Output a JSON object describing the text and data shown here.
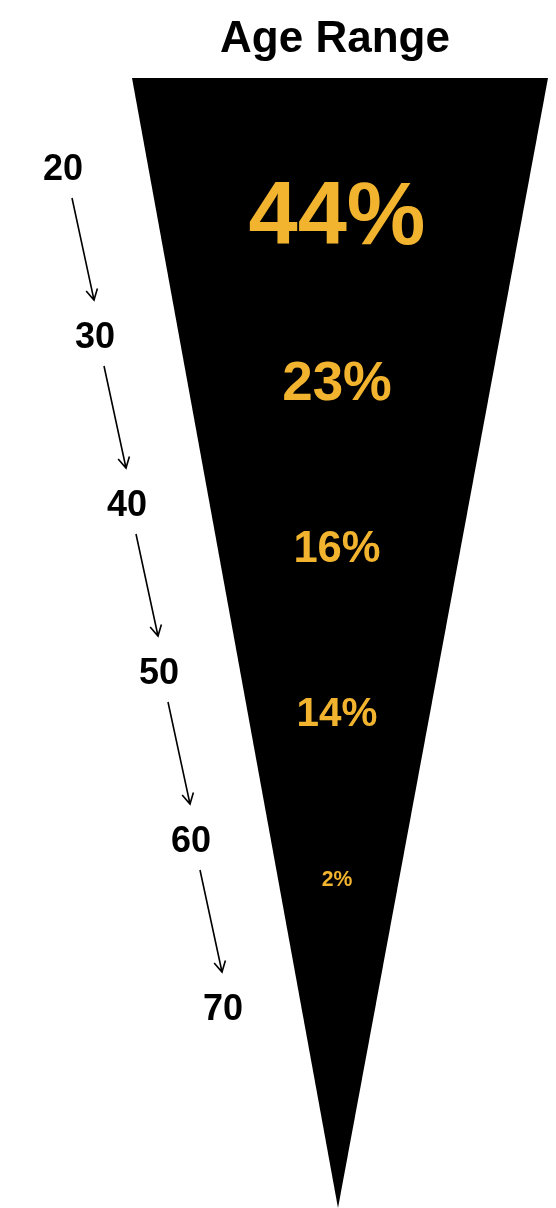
{
  "chart_data": {
    "type": "other",
    "title": "Age Range",
    "categories": [
      "20",
      "30",
      "40",
      "50",
      "60",
      "70"
    ],
    "values": [
      44,
      23,
      16,
      14,
      2,
      null
    ],
    "value_labels": [
      "44%",
      "23%",
      "16%",
      "14%",
      "2%",
      null
    ],
    "color": "#f2b32e"
  }
}
